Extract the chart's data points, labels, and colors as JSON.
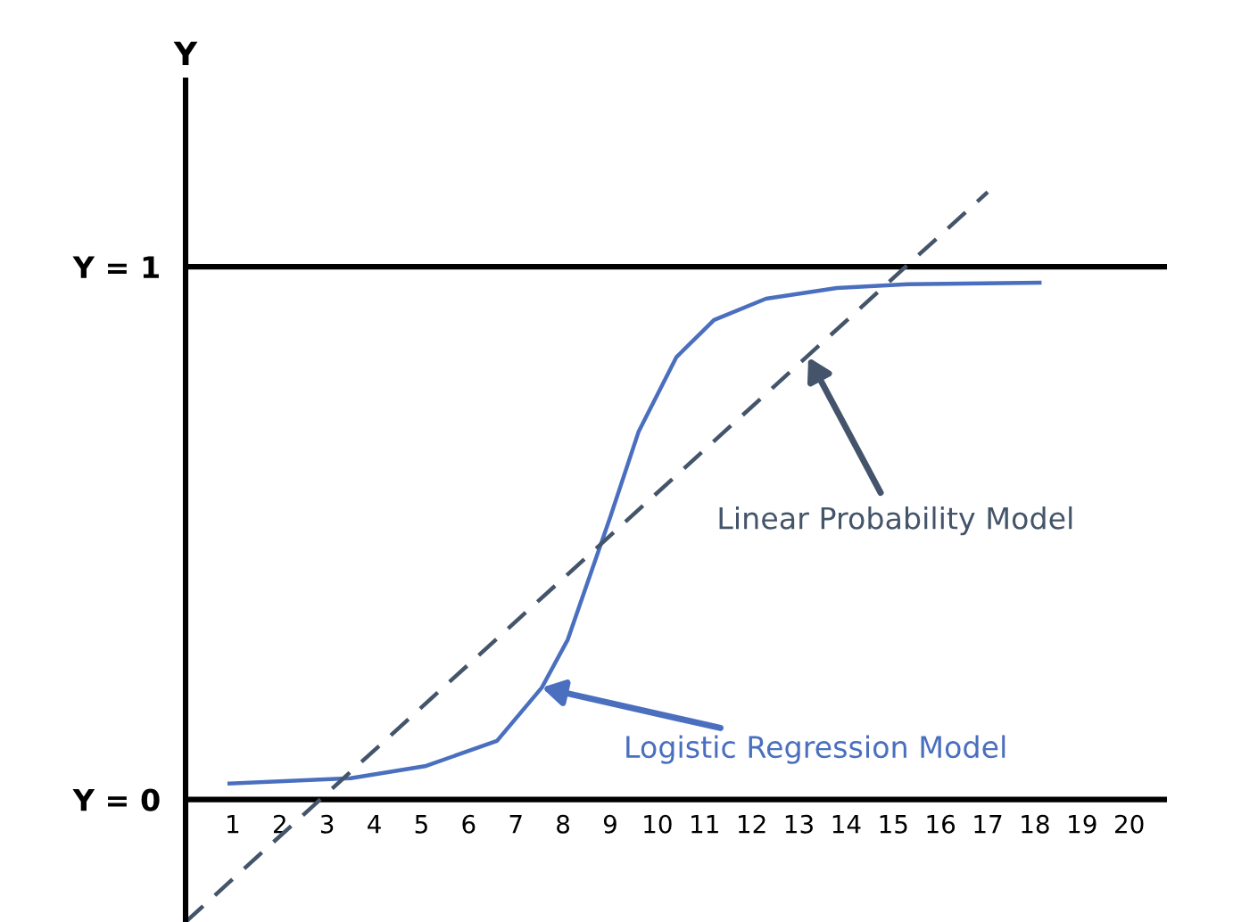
{
  "chart_data": {
    "type": "line",
    "ylabel": "Y",
    "xlim": [
      0,
      20.8
    ],
    "ylim": [
      -0.23,
      1.35
    ],
    "xticks": [
      1,
      2,
      3,
      4,
      5,
      6,
      7,
      8,
      9,
      10,
      11,
      12,
      13,
      14,
      15,
      16,
      17,
      18,
      19,
      20
    ],
    "yticks": [
      {
        "value": 0,
        "label": "Y = 0"
      },
      {
        "value": 1,
        "label": "Y = 1"
      }
    ],
    "series": [
      {
        "color": "#4a6fbf",
        "line_style": "solid",
        "x": [
          0.93,
          3.5,
          5.1,
          6.6,
          7.55,
          8.1,
          9.0,
          9.6,
          10.4,
          11.2,
          12.3,
          13.8,
          15.3,
          18.1
        ],
        "values": [
          0.03,
          0.04,
          0.063,
          0.11,
          0.21,
          0.3,
          0.53,
          0.69,
          0.83,
          0.9,
          0.94,
          0.96,
          0.967,
          0.97
        ]
      },
      {
        "color": "#44546a",
        "line_style": "dashed",
        "x": [
          0,
          17
        ],
        "values": [
          -0.23,
          1.14
        ]
      }
    ],
    "ref_lines": [
      {
        "axis": "y",
        "value": 0,
        "color": "#000000"
      },
      {
        "axis": "y",
        "value": 1,
        "color": "#000000"
      }
    ],
    "annotations": [
      {
        "text": "Logistic Regression Model",
        "x": 7.55,
        "y": 0.21
      },
      {
        "text": "Linear Probability Model",
        "x": 13.2,
        "y": 0.83
      }
    ],
    "grid": false,
    "legend": false,
    "marker": "none"
  }
}
